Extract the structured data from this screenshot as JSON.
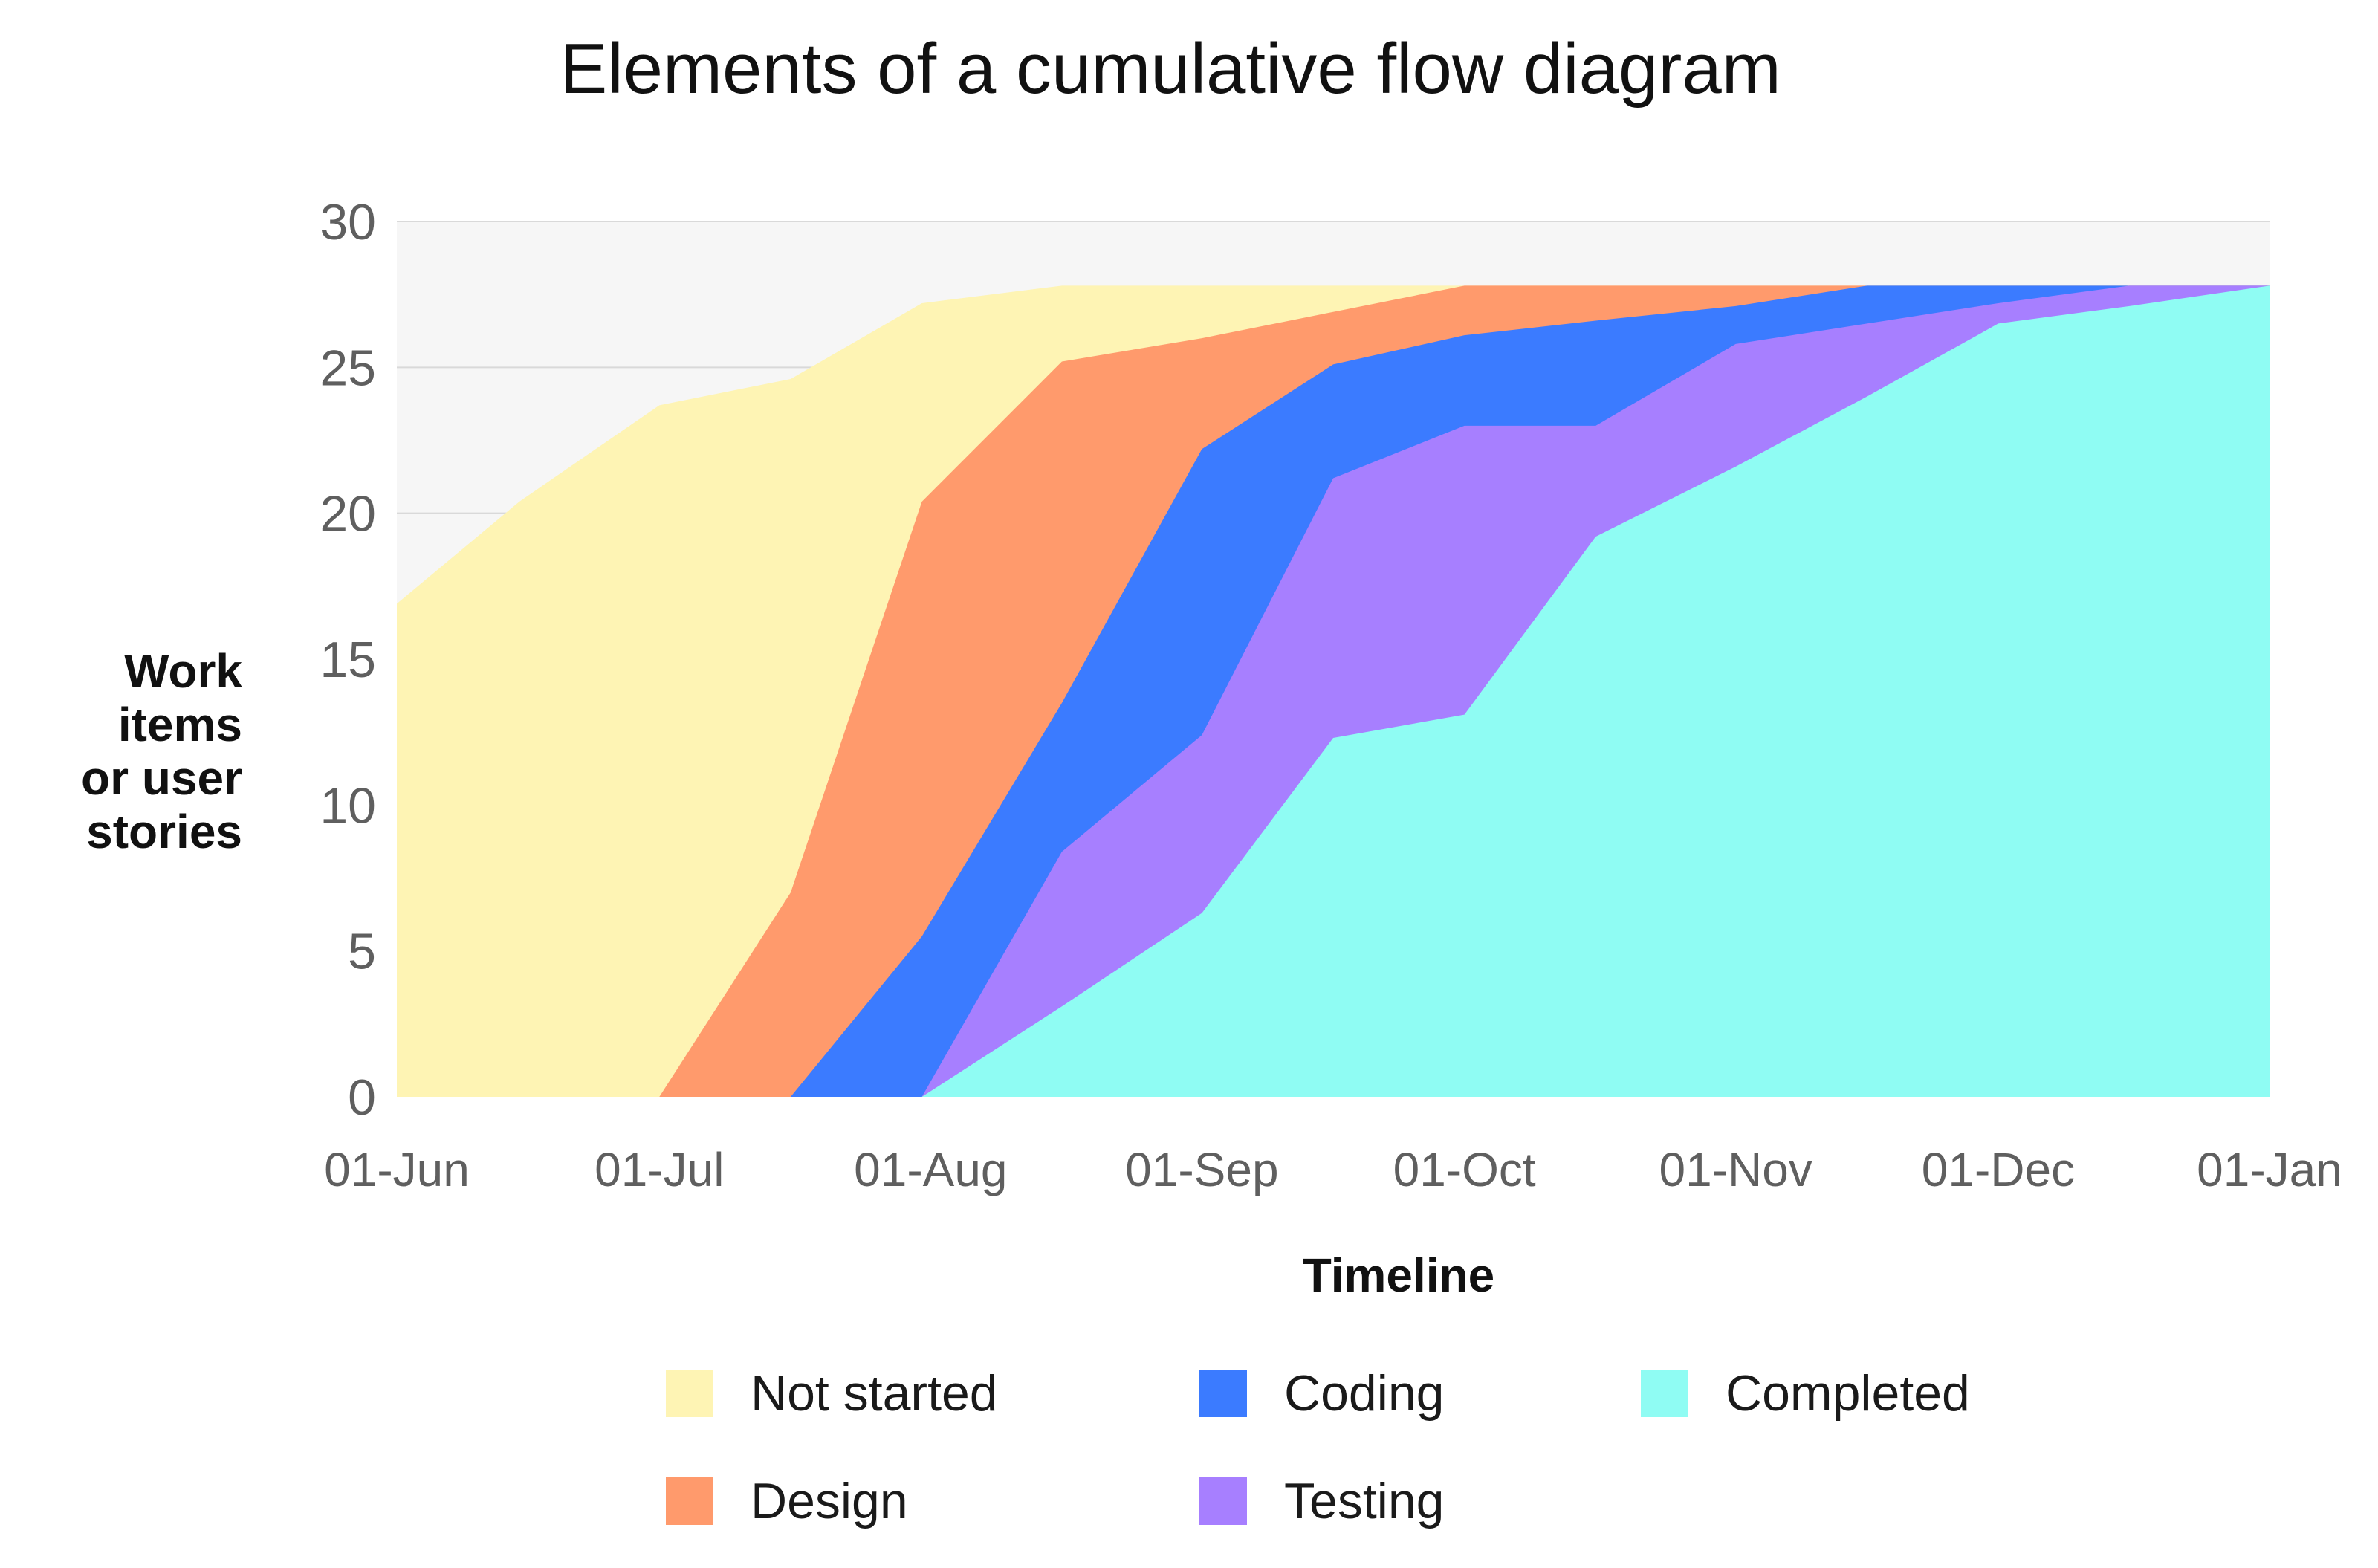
{
  "chart_data": {
    "type": "area",
    "stacked": true,
    "title": "Elements of a cumulative flow diagram",
    "xlabel": "Timeline",
    "ylabel": [
      "Work",
      "items",
      "or user",
      "stories"
    ],
    "ylim": [
      0,
      30
    ],
    "yticks": [
      "0",
      "5",
      "10",
      "15",
      "20",
      "25",
      "30"
    ],
    "xticks": [
      "01-Jun",
      "01-Jul",
      "01-Aug",
      "01-Sep",
      "01-Oct",
      "01-Nov",
      "01-Dec",
      "01-Jan"
    ],
    "x": [
      "01-Jun",
      "15-Jun",
      "01-Jul",
      "16-Jul",
      "31-Jul",
      "16-Aug",
      "01-Sep",
      "16-Sep",
      "01-Oct",
      "16-Oct",
      "01-Nov",
      "16-Nov",
      "01-Dec",
      "16-Dec",
      "01-Jan"
    ],
    "grid": true,
    "legend_position": "bottom",
    "series": [
      {
        "name": "Completed",
        "color": "#8ffcf3",
        "values": [
          0,
          0,
          0,
          0,
          0,
          3.1,
          6.3,
          12.3,
          13.1,
          19.2,
          21.6,
          24.0,
          26.5,
          27.1,
          27.8
        ]
      },
      {
        "name": "Testing",
        "color": "#a77fff",
        "values": [
          0,
          0,
          0,
          0,
          0,
          8.4,
          12.4,
          21.2,
          23.0,
          23.0,
          25.8,
          26.5,
          27.2,
          27.8,
          27.8
        ]
      },
      {
        "name": "Coding",
        "color": "#3b7bff",
        "values": [
          0,
          0,
          0,
          0,
          5.5,
          13.5,
          22.2,
          25.1,
          26.1,
          26.6,
          27.1,
          27.8,
          27.8,
          27.8,
          27.8
        ]
      },
      {
        "name": "Design",
        "color": "#ff9a6c",
        "values": [
          0,
          0,
          0,
          7.0,
          20.4,
          25.2,
          26.0,
          26.9,
          27.8,
          27.8,
          27.8,
          27.8,
          27.8,
          27.8,
          27.8
        ]
      },
      {
        "name": "Not started",
        "color": "#fef4b4",
        "values": [
          16.9,
          20.4,
          23.7,
          24.6,
          27.2,
          27.8,
          27.8,
          27.8,
          27.8,
          27.8,
          27.8,
          27.8,
          27.8,
          27.8,
          27.8
        ]
      }
    ],
    "legend": [
      {
        "name": "Not started",
        "color": "#fef4b4"
      },
      {
        "name": "Coding",
        "color": "#3b7bff"
      },
      {
        "name": "Completed",
        "color": "#8ffcf3"
      },
      {
        "name": "Design",
        "color": "#ff9a6c"
      },
      {
        "name": "Testing",
        "color": "#a77fff"
      }
    ]
  }
}
